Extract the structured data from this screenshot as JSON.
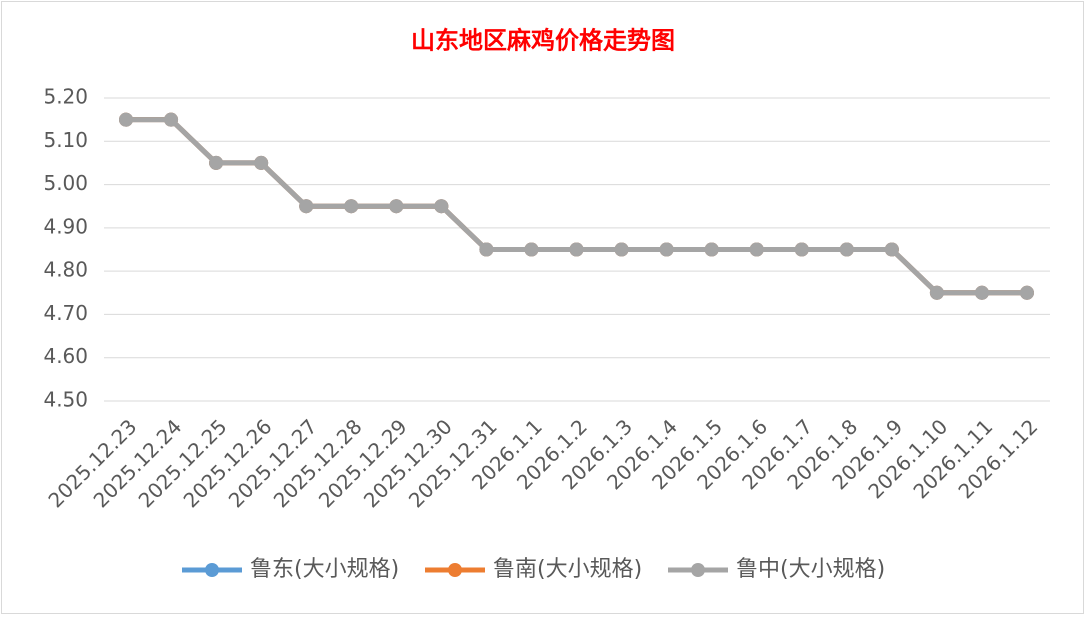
{
  "chart_data": {
    "type": "line",
    "title": "山东地区麻鸡价格走势图",
    "categories": [
      "2025.12.23",
      "2025.12.24",
      "2025.12.25",
      "2025.12.26",
      "2025.12.27",
      "2025.12.28",
      "2025.12.29",
      "2025.12.30",
      "2025.12.31",
      "2026.1.1",
      "2026.1.2",
      "2026.1.3",
      "2026.1.4",
      "2026.1.5",
      "2026.1.6",
      "2026.1.7",
      "2026.1.8",
      "2026.1.9",
      "2026.1.10",
      "2026.1.11",
      "2026.1.12"
    ],
    "series": [
      {
        "name": "鲁东(大小规格)",
        "color": "#5b9bd5",
        "values": [
          5.15,
          5.15,
          5.05,
          5.05,
          4.95,
          4.95,
          4.95,
          4.95,
          4.85,
          4.85,
          4.85,
          4.85,
          4.85,
          4.85,
          4.85,
          4.85,
          4.85,
          4.85,
          4.75,
          4.75,
          4.75
        ]
      },
      {
        "name": "鲁南(大小规格)",
        "color": "#ed7d31",
        "values": [
          5.15,
          5.15,
          5.05,
          5.05,
          4.95,
          4.95,
          4.95,
          4.95,
          4.85,
          4.85,
          4.85,
          4.85,
          4.85,
          4.85,
          4.85,
          4.85,
          4.85,
          4.85,
          4.75,
          4.75,
          4.75
        ]
      },
      {
        "name": "鲁中(大小规格)",
        "color": "#a5a5a5",
        "values": [
          5.15,
          5.15,
          5.05,
          5.05,
          4.95,
          4.95,
          4.95,
          4.95,
          4.85,
          4.85,
          4.85,
          4.85,
          4.85,
          4.85,
          4.85,
          4.85,
          4.85,
          4.85,
          4.75,
          4.75,
          4.75
        ]
      }
    ],
    "ylim": [
      4.5,
      5.2
    ],
    "yticks": [
      {
        "value": 4.5,
        "label": "4.50"
      },
      {
        "value": 4.6,
        "label": "4.60"
      },
      {
        "value": 4.7,
        "label": "4.70"
      },
      {
        "value": 4.8,
        "label": "4.80"
      },
      {
        "value": 4.9,
        "label": "4.90"
      },
      {
        "value": 5,
        "label": "5.00"
      },
      {
        "value": 5.1,
        "label": "5.10"
      },
      {
        "value": 5.2,
        "label": "5.20"
      }
    ],
    "grid": true,
    "legend": "bottom"
  }
}
